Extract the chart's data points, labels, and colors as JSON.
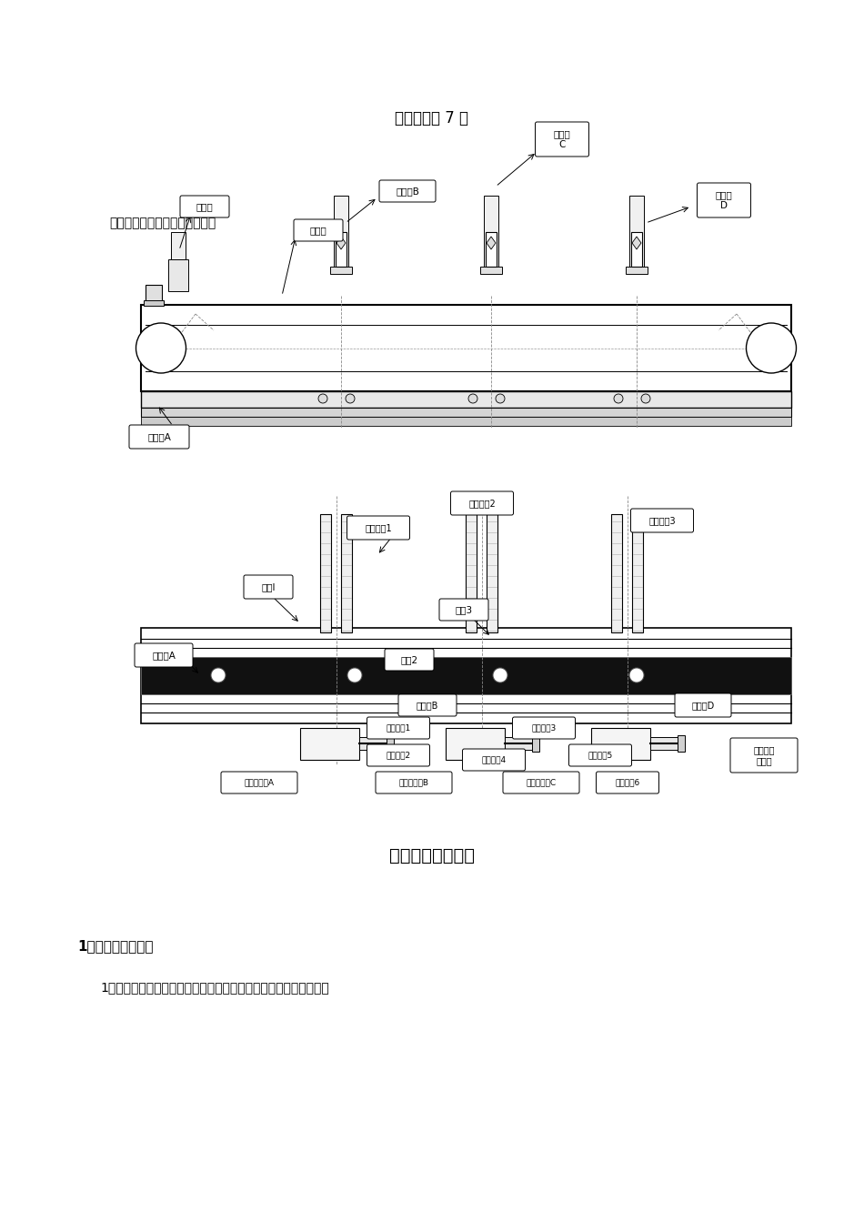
{
  "bg_color": "#ffffff",
  "page_width": 9.5,
  "page_height": 13.44,
  "title_text": "本份试卷共 7 页",
  "intro_text": "有一个工作系统，如下图所示：",
  "section_title": "一、系统情况说明",
  "subsection_title": "1、系统的器件说明",
  "body_text": "1）动力源。系统为一物料传送分拣结机构，其中传送带动力源是带"
}
